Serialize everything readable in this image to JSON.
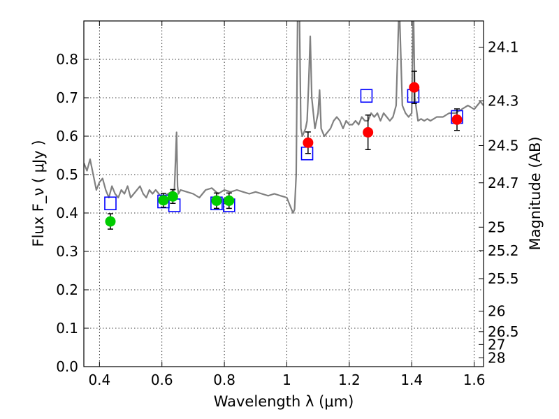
{
  "chart_data": {
    "type": "scatter",
    "xlabel": "Wavelength  λ (μm)",
    "ylabel": "Flux  F_ν  ( μJy )",
    "y2label": "Magnitude (AB)",
    "xlim": [
      0.35,
      1.63
    ],
    "ylim": [
      0.0,
      0.9
    ],
    "xticks": [
      0.4,
      0.6,
      0.8,
      1.0,
      1.2,
      1.4,
      1.6
    ],
    "xtick_labels": [
      "0.4",
      "0.6",
      "0.8",
      "1",
      "1.2",
      "1.4",
      "1.6"
    ],
    "yticks": [
      0.0,
      0.1,
      0.2,
      0.3,
      0.4,
      0.5,
      0.6,
      0.7,
      0.8
    ],
    "ytick_labels": [
      "0.0",
      "0.1",
      "0.2",
      "0.3",
      "0.4",
      "0.5",
      "0.6",
      "0.7",
      "0.8"
    ],
    "y2ticks": [
      24.1,
      24.3,
      24.5,
      24.7,
      25,
      25.2,
      25.5,
      26,
      26.5,
      27,
      28
    ],
    "y2tick_labels": [
      "24.1",
      "24.3",
      "24.5",
      "24.7",
      "25",
      "25.2",
      "25.5",
      "26",
      "26.5",
      "27",
      "28"
    ],
    "grid": true,
    "colors": {
      "model": "#808080",
      "model_photometry": "#0000ff",
      "optical_obs": "#00cc00",
      "nir_obs": "#ff0000",
      "errorbar": "#000000"
    },
    "series": [
      {
        "name": "model spectrum",
        "kind": "line",
        "x": [
          0.35,
          0.36,
          0.37,
          0.38,
          0.39,
          0.4,
          0.41,
          0.42,
          0.43,
          0.44,
          0.45,
          0.46,
          0.47,
          0.48,
          0.49,
          0.5,
          0.51,
          0.52,
          0.53,
          0.54,
          0.55,
          0.56,
          0.57,
          0.58,
          0.59,
          0.6,
          0.62,
          0.64,
          0.647,
          0.65,
          0.653,
          0.66,
          0.68,
          0.7,
          0.72,
          0.74,
          0.76,
          0.78,
          0.8,
          0.82,
          0.84,
          0.86,
          0.88,
          0.9,
          0.92,
          0.94,
          0.96,
          0.98,
          1.0,
          1.01,
          1.02,
          1.025,
          1.03,
          1.035,
          1.04,
          1.045,
          1.05,
          1.06,
          1.065,
          1.07,
          1.075,
          1.08,
          1.09,
          1.1,
          1.105,
          1.11,
          1.12,
          1.13,
          1.14,
          1.15,
          1.16,
          1.17,
          1.18,
          1.19,
          1.2,
          1.21,
          1.22,
          1.23,
          1.24,
          1.25,
          1.26,
          1.27,
          1.28,
          1.29,
          1.3,
          1.31,
          1.32,
          1.33,
          1.34,
          1.35,
          1.36,
          1.37,
          1.38,
          1.39,
          1.4,
          1.405,
          1.41,
          1.42,
          1.43,
          1.44,
          1.45,
          1.46,
          1.47,
          1.48,
          1.5,
          1.52,
          1.54,
          1.56,
          1.58,
          1.6,
          1.62,
          1.63
        ],
        "y": [
          0.53,
          0.51,
          0.54,
          0.5,
          0.46,
          0.48,
          0.49,
          0.46,
          0.44,
          0.47,
          0.45,
          0.44,
          0.46,
          0.45,
          0.47,
          0.44,
          0.45,
          0.46,
          0.47,
          0.45,
          0.44,
          0.46,
          0.45,
          0.46,
          0.45,
          0.44,
          0.45,
          0.46,
          0.61,
          0.47,
          0.45,
          0.46,
          0.455,
          0.45,
          0.44,
          0.46,
          0.465,
          0.45,
          0.46,
          0.455,
          0.46,
          0.455,
          0.45,
          0.455,
          0.45,
          0.445,
          0.45,
          0.445,
          0.44,
          0.42,
          0.4,
          0.41,
          0.5,
          0.95,
          0.95,
          0.62,
          0.6,
          0.62,
          0.64,
          0.74,
          0.86,
          0.7,
          0.62,
          0.66,
          0.72,
          0.62,
          0.6,
          0.61,
          0.62,
          0.64,
          0.65,
          0.64,
          0.62,
          0.64,
          0.63,
          0.63,
          0.64,
          0.63,
          0.65,
          0.64,
          0.64,
          0.66,
          0.65,
          0.66,
          0.64,
          0.66,
          0.65,
          0.64,
          0.65,
          0.68,
          0.95,
          0.68,
          0.66,
          0.65,
          0.66,
          0.95,
          0.7,
          0.64,
          0.645,
          0.64,
          0.645,
          0.64,
          0.645,
          0.65,
          0.65,
          0.66,
          0.66,
          0.67,
          0.68,
          0.67,
          0.69,
          0.68
        ]
      },
      {
        "name": "model photometry",
        "kind": "open-square",
        "x": [
          0.435,
          0.605,
          0.64,
          0.775,
          0.815,
          1.065,
          1.255,
          1.405,
          1.545
        ],
        "y": [
          0.425,
          0.43,
          0.42,
          0.425,
          0.42,
          0.555,
          0.705,
          0.705,
          0.65
        ]
      },
      {
        "name": "observed optical",
        "kind": "filled-circle",
        "x": [
          0.435,
          0.605,
          0.635,
          0.775,
          0.815
        ],
        "y": [
          0.378,
          0.433,
          0.443,
          0.432,
          0.432
        ],
        "yerr": [
          0.02,
          0.018,
          0.018,
          0.02,
          0.02
        ]
      },
      {
        "name": "observed near-IR",
        "kind": "filled-circle",
        "x": [
          1.068,
          1.26,
          1.408,
          1.545
        ],
        "y": [
          0.583,
          0.61,
          0.727,
          0.643
        ],
        "yerr": [
          0.028,
          0.045,
          0.042,
          0.028
        ]
      }
    ]
  }
}
